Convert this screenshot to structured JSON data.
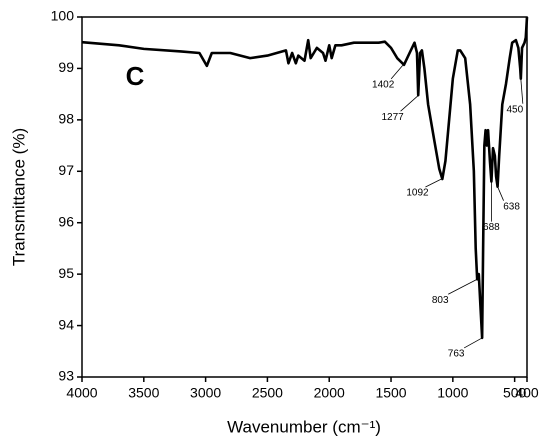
{
  "chart_data": {
    "type": "line",
    "panel_label": "C",
    "xlabel": "Wavenumber (cm⁻¹)",
    "ylabel": "Transmittance (%)",
    "xlim": [
      4000,
      400
    ],
    "ylim": [
      93,
      100
    ],
    "xticks": [
      4000,
      3500,
      3000,
      2500,
      2000,
      1500,
      1000,
      500,
      400
    ],
    "yticks": [
      93,
      94,
      95,
      96,
      97,
      98,
      99,
      100
    ],
    "x": [
      4000,
      3700,
      3500,
      3200,
      3050,
      2990,
      2950,
      2800,
      2640,
      2500,
      2350,
      2330,
      2300,
      2270,
      2250,
      2200,
      2170,
      2150,
      2100,
      2050,
      2030,
      2000,
      1980,
      1950,
      1900,
      1800,
      1700,
      1600,
      1550,
      1500,
      1450,
      1395,
      1350,
      1310,
      1290,
      1280,
      1265,
      1250,
      1230,
      1200,
      1150,
      1110,
      1085,
      1060,
      1030,
      1000,
      960,
      940,
      900,
      860,
      830,
      815,
      803,
      790,
      775,
      763,
      755,
      745,
      735,
      725,
      715,
      700,
      688,
      675,
      660,
      650,
      638,
      625,
      600,
      570,
      540,
      520,
      490,
      470,
      455,
      450,
      440,
      420,
      410,
      400
    ],
    "series": [
      {
        "color": "#000000",
        "values": [
          99.51,
          99.45,
          99.38,
          99.33,
          99.3,
          99.05,
          99.3,
          99.3,
          99.2,
          99.25,
          99.35,
          99.1,
          99.3,
          99.1,
          99.25,
          99.15,
          99.55,
          99.2,
          99.4,
          99.3,
          99.15,
          99.45,
          99.2,
          99.45,
          99.45,
          99.5,
          99.5,
          99.5,
          99.52,
          99.4,
          99.2,
          99.07,
          99.3,
          99.5,
          99.3,
          98.48,
          99.3,
          99.35,
          99.0,
          98.3,
          97.6,
          97.05,
          96.85,
          97.2,
          98.0,
          98.8,
          99.35,
          99.35,
          99.2,
          98.3,
          97.0,
          95.5,
          94.9,
          95.0,
          94.3,
          93.76,
          95.5,
          97.5,
          97.8,
          97.5,
          97.8,
          97.2,
          96.8,
          97.45,
          97.3,
          96.9,
          96.7,
          97.3,
          98.3,
          98.7,
          99.2,
          99.5,
          99.55,
          99.4,
          99.0,
          98.8,
          99.4,
          99.5,
          99.6,
          100.0
        ]
      }
    ],
    "peaks": [
      {
        "x": 1402,
        "y": 99.07
      },
      {
        "x": 1277,
        "y": 98.48
      },
      {
        "x": 1092,
        "y": 96.85
      },
      {
        "x": 803,
        "y": 94.9
      },
      {
        "x": 763,
        "y": 93.76
      },
      {
        "x": 688,
        "y": 96.8
      },
      {
        "x": 638,
        "y": 96.7
      },
      {
        "x": 450,
        "y": 98.8
      }
    ]
  }
}
